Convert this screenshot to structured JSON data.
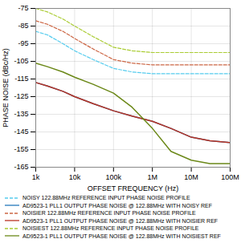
{
  "chart_data": {
    "type": "line",
    "xlabel": "OFFSET FREQUENCY (Hz)",
    "ylabel": "PHASE NOISE (dBc/Hz)",
    "log": "x",
    "grid": true,
    "legend": "bottom",
    "xlim": [
      1000,
      100000000
    ],
    "xticks": [
      {
        "value": 1000,
        "label": "1k"
      },
      {
        "value": 10000,
        "label": "10k"
      },
      {
        "value": 100000,
        "label": "100k"
      },
      {
        "value": 1000000,
        "label": "1M"
      },
      {
        "value": 10000000,
        "label": "10M"
      },
      {
        "value": 100000000,
        "label": "100M"
      }
    ],
    "ylim": [
      -165,
      -75
    ],
    "yticks": [
      -165,
      -155,
      -145,
      -135,
      -125,
      -115,
      -105,
      -95,
      -85,
      -75
    ],
    "x": [
      1000,
      2000,
      5000,
      10000,
      30000,
      100000,
      300000,
      1000000,
      3000000,
      10000000,
      30000000,
      100000000
    ],
    "series": [
      {
        "name": "NOISY 122.88MHz REFERENCE INPUT PHASE NOISE PROFILE",
        "color": "#55ccee",
        "line_style": "dashed",
        "values": [
          -88,
          -90,
          -95,
          -99,
          -104,
          -109,
          -111,
          -112,
          -112,
          -112,
          -112,
          -112
        ]
      },
      {
        "name": "AD9523-1 PLL1 OUTPUT PHASE NOISE @ 122.88MHz WITH NOISY REF",
        "color": "#2277bb",
        "line_style": "solid",
        "values": [
          -117,
          -119,
          -122,
          -125,
          -129,
          -133,
          -136,
          -139,
          -143,
          -148,
          -150,
          -151
        ]
      },
      {
        "name": "NOISIER 122.88MHz REFERENCE INPUT PHASE NOISE PROFILE",
        "color": "#cc6644",
        "line_style": "dashed",
        "values": [
          -82,
          -84,
          -88,
          -92,
          -98,
          -104,
          -106,
          -107,
          -107,
          -107,
          -107,
          -107
        ]
      },
      {
        "name": "AD9523-1 PLL1 OUTPUT PHASE NOISE @ 122.88MHz WITH NOISIER REF",
        "color": "#bb3322",
        "line_style": "solid",
        "values": [
          -117,
          -119,
          -122,
          -125,
          -129,
          -133,
          -136,
          -139,
          -143,
          -148,
          -150,
          -151
        ]
      },
      {
        "name": "NOISIEST 122.88MHz REFERENCE INPUT PHASE NOISE PROFILE",
        "color": "#aacc33",
        "line_style": "dashed",
        "values": [
          -75,
          -77,
          -81,
          -85,
          -91,
          -97,
          -99,
          -100,
          -100,
          -100,
          -100,
          -100
        ]
      },
      {
        "name": "AD9523-1 PLL1 OUTPUT PHASE NOISE @ 122.88MHz WITH NOISIEST REF",
        "color": "#6b8818",
        "line_style": "solid",
        "values": [
          -106,
          -108,
          -111,
          -114,
          -118,
          -123,
          -131,
          -143,
          -156,
          -161,
          -163,
          -163
        ]
      }
    ]
  }
}
